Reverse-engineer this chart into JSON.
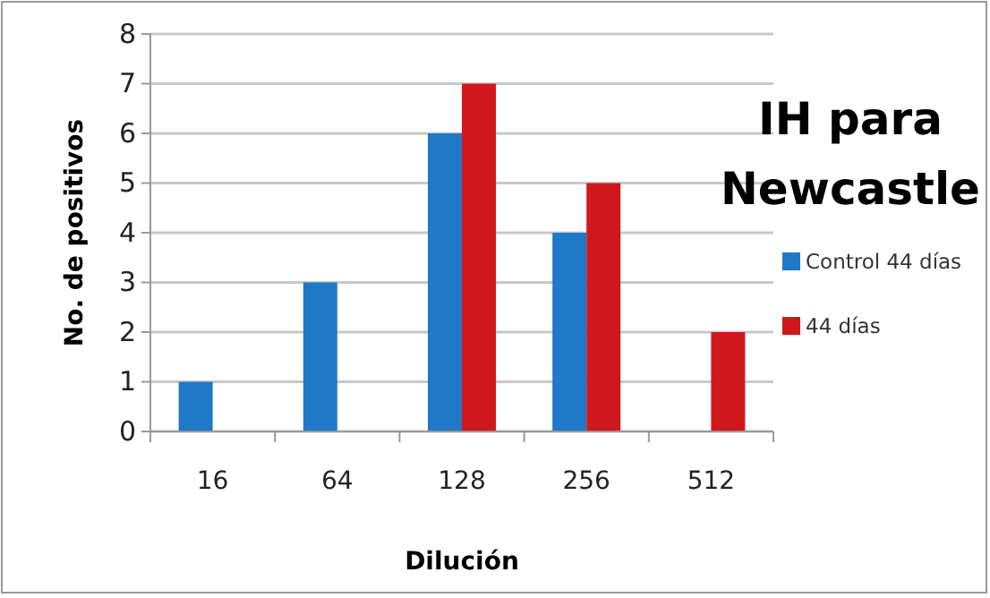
{
  "chart_data": {
    "type": "bar",
    "title": "IH para Newcastle",
    "xlabel": "Dilución",
    "ylabel": "No. de positivos",
    "categories": [
      "16",
      "64",
      "128",
      "256",
      "512"
    ],
    "series": [
      {
        "name": "Control 44 días",
        "color": "#1f78c8",
        "values": [
          1,
          3,
          6,
          4,
          0
        ]
      },
      {
        "name": "44 días",
        "color": "#d0181c",
        "values": [
          0,
          0,
          7,
          5,
          2
        ]
      }
    ],
    "ylim": [
      0,
      8
    ],
    "yticks": [
      0,
      1,
      2,
      3,
      4,
      5,
      6,
      7,
      8
    ],
    "grid": "y",
    "legend": "right"
  }
}
